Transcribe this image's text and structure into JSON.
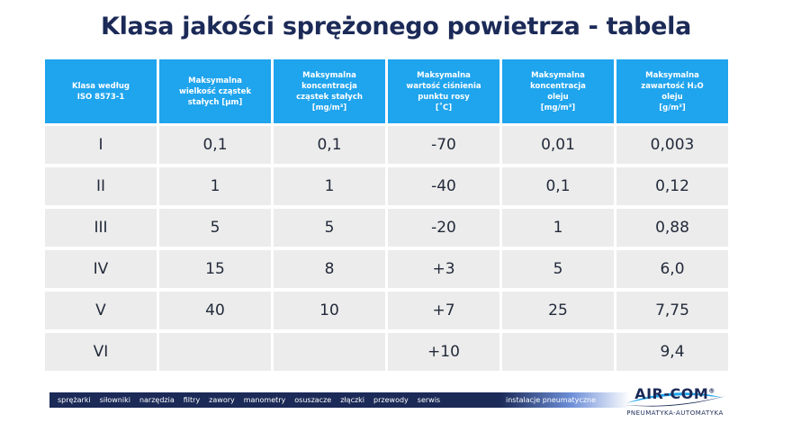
{
  "title": "Klasa jakości sprężonego powietrza - tabela",
  "table": {
    "headers": [
      {
        "line1": "Klasa według",
        "line2": "ISO 8573-1",
        "line3": "",
        "line4": ""
      },
      {
        "line1": "Maksymalna",
        "line2": "wielkość cząstek",
        "line3": "stałych [µm]",
        "line4": ""
      },
      {
        "line1": "Maksymalna",
        "line2": "koncentracja",
        "line3": "cząstek stałych",
        "line4": "[mg/m³]"
      },
      {
        "line1": "Maksymalna",
        "line2": "wartość ciśnienia",
        "line3": "punktu rosy",
        "line4": "[˚C]"
      },
      {
        "line1": "Maksymalna",
        "line2": "koncentracja",
        "line3": "oleju",
        "line4": "[mg/m³]"
      },
      {
        "line1": "Maksymalna",
        "line2": "zawartość H₂O",
        "line3": "oleju",
        "line4": "[g/m³]"
      }
    ],
    "rows": [
      [
        "I",
        "0,1",
        "0,1",
        "-70",
        "0,01",
        "0,003"
      ],
      [
        "II",
        "1",
        "1",
        "-40",
        "0,1",
        "0,12"
      ],
      [
        "III",
        "5",
        "5",
        "-20",
        "1",
        "0,88"
      ],
      [
        "IV",
        "15",
        "8",
        "+3",
        "5",
        "6,0"
      ],
      [
        "V",
        "40",
        "10",
        "+7",
        "25",
        "7,75"
      ],
      [
        "VI",
        "",
        "",
        "+10",
        "",
        "9,4"
      ]
    ]
  },
  "footer": {
    "nav": [
      "sprężarki",
      "siłowniki",
      "narzędzia",
      "filtry",
      "zawory",
      "manometry",
      "osuszacze",
      "złączki",
      "przewody",
      "serwis"
    ],
    "tag": "instalacje pneumatyczne",
    "logo_name": "AIR-COM",
    "logo_reg": "®",
    "logo_sub": "PNEUMATYKA-AUTOMATYKA"
  },
  "colors": {
    "title": "#1b2a57",
    "header_bg": "#1fa4ee",
    "cell_bg": "#ececec",
    "footer_bar": "#1b2a57"
  }
}
